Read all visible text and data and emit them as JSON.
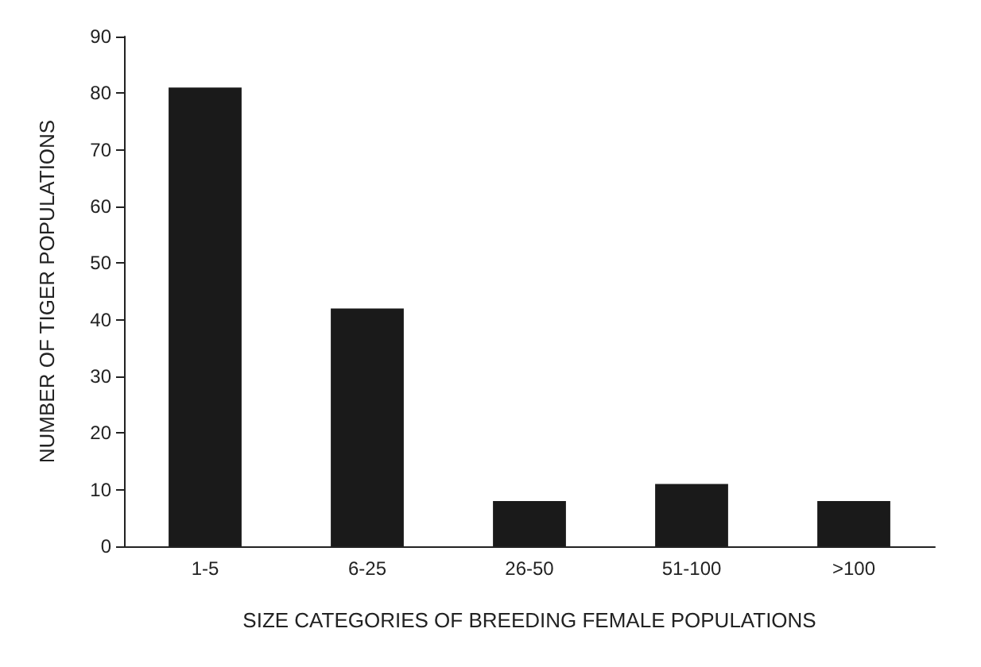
{
  "chart_data": {
    "type": "bar",
    "xlabel": "SIZE CATEGORIES OF BREEDING FEMALE POPULATIONS",
    "ylabel": "NUMBER OF TIGER POPULATIONS",
    "categories": [
      "1-5",
      "6-25",
      "26-50",
      "51-100",
      ">100"
    ],
    "values": [
      81,
      42,
      8,
      11,
      8
    ],
    "color": "#1a1a1a",
    "ylim": [
      0,
      90
    ],
    "yticks": [
      0,
      10,
      20,
      30,
      40,
      50,
      60,
      70,
      80,
      90
    ],
    "grid": false
  }
}
